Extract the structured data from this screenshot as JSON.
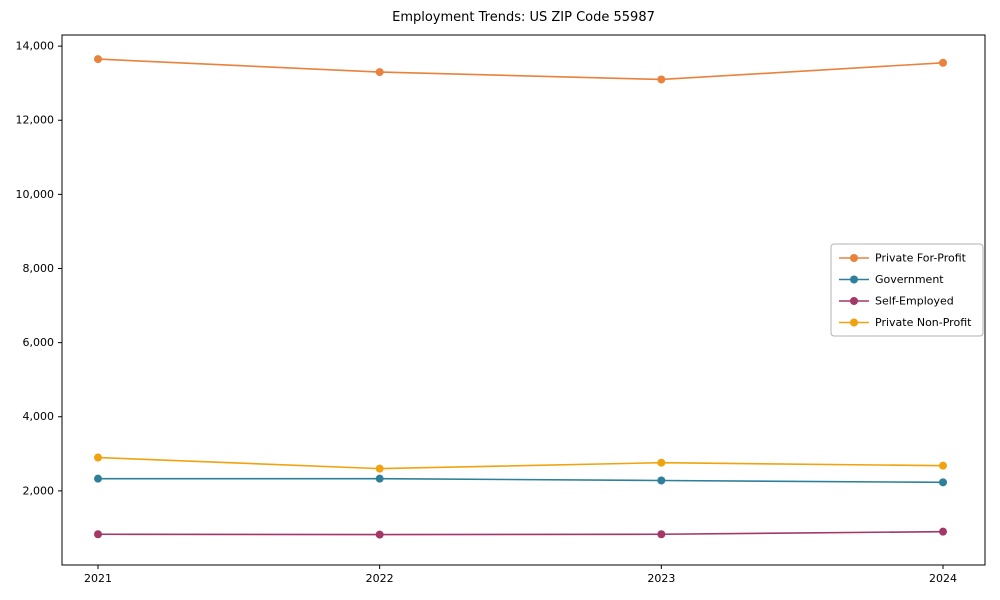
{
  "chart_data": {
    "type": "line",
    "title": "Employment Trends: US ZIP Code 55987",
    "xlabel": "",
    "ylabel": "",
    "x": [
      "2021",
      "2022",
      "2023",
      "2024"
    ],
    "series": [
      {
        "name": "Private For-Profit",
        "color": "#e8823c",
        "values": [
          13650,
          13300,
          13100,
          13550
        ]
      },
      {
        "name": "Government",
        "color": "#2e7f99",
        "values": [
          2330,
          2330,
          2280,
          2230
        ]
      },
      {
        "name": "Self-Employed",
        "color": "#a23768",
        "values": [
          830,
          820,
          830,
          900
        ]
      },
      {
        "name": "Private Non-Profit",
        "color": "#f0a30e",
        "values": [
          2900,
          2600,
          2760,
          2680
        ]
      }
    ],
    "ylim": [
      0,
      14300
    ],
    "yticks": [
      2000,
      4000,
      6000,
      8000,
      10000,
      12000,
      14000
    ],
    "grid": false,
    "legend_position": "center right",
    "marker": "circle"
  }
}
